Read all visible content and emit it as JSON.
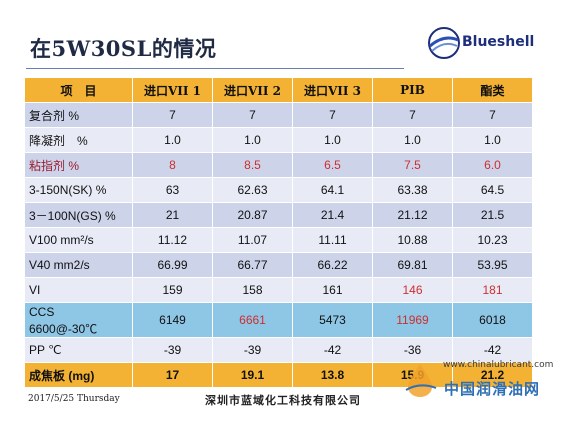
{
  "title": "在5W30SL的情况",
  "logo": {
    "name": "Blueshell",
    "icon": "globe-swoosh-icon"
  },
  "table": {
    "headers": [
      "项　目",
      "进口VII 1",
      "进口VII 2",
      "进口VII 3",
      "PIB",
      "酯类"
    ],
    "rows": [
      {
        "label": "复合剂 %",
        "values": [
          "7",
          "7",
          "7",
          "7",
          "7"
        ],
        "style": "odd"
      },
      {
        "label": "降凝剂　%",
        "values": [
          "1.0",
          "1.0",
          "1.0",
          "1.0",
          "1.0"
        ],
        "style": "even"
      },
      {
        "label": "粘指剂 %",
        "values": [
          "8",
          "8.5",
          "6.5",
          "7.5",
          "6.0"
        ],
        "style": "odd",
        "emphasis": "all"
      },
      {
        "label": "3-150N(SK)  %",
        "values": [
          "63",
          "62.63",
          "64.1",
          "63.38",
          "64.5"
        ],
        "style": "even"
      },
      {
        "label": "3－100N(GS)  %",
        "values": [
          "21",
          "20.87",
          "21.4",
          "21.12",
          "21.5"
        ],
        "style": "odd"
      },
      {
        "label": "V100 mm²/s",
        "values": [
          "11.12",
          "11.07",
          "11.11",
          "10.88",
          "10.23"
        ],
        "style": "even"
      },
      {
        "label": "V40 mm2/s",
        "values": [
          "66.99",
          "66.77",
          "66.22",
          "69.81",
          "53.95"
        ],
        "style": "odd"
      },
      {
        "label": "VI",
        "values": [
          "159",
          "158",
          "161",
          "146",
          "181"
        ],
        "style": "even",
        "emphasis": [
          3,
          4
        ]
      },
      {
        "label": "CCS　6600@-30℃",
        "values": [
          "6149",
          "6661",
          "5473",
          "11969",
          "6018"
        ],
        "style": "ccs",
        "emphasis": [
          1,
          3
        ]
      },
      {
        "label": "PP ℃",
        "values": [
          "-39",
          "-39",
          "-42",
          "-36",
          "-42"
        ],
        "style": "even"
      },
      {
        "label": "成焦板 (mg)",
        "values": [
          "17",
          "19.1",
          "13.8",
          "15.9",
          "21.2"
        ],
        "style": "coke"
      }
    ]
  },
  "footer": {
    "date": "2017/5/25 Thursday",
    "company": "深圳市蓝域化工科技有限公司"
  },
  "watermark": {
    "url": "www.chinalubricant.com",
    "name": "中国润滑油网",
    "icon": "oil-drop-icon"
  },
  "colors": {
    "header": "#f3b233",
    "row_odd": "#cdd4ea",
    "row_even": "#e8ebf5",
    "ccs_row": "#8ec6e6",
    "emphasis": "#cc2f2f"
  }
}
